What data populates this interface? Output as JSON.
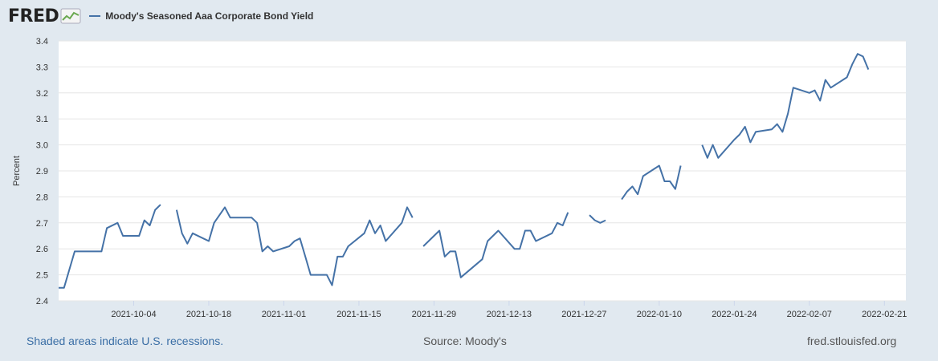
{
  "header": {
    "logo_text": "FRED",
    "logo_icon": "trend-chart-icon",
    "series_label": "Moody's Seasoned Aaa Corporate Bond Yield"
  },
  "footer": {
    "recessions_note": "Shaded areas indicate U.S. recessions.",
    "source": "Source: Moody's",
    "site": "fred.stlouisfed.org"
  },
  "colors": {
    "background": "#e1e9f0",
    "plot_background": "#ffffff",
    "series": "#4572a7",
    "grid": "#e6e6e6"
  },
  "chart_data": {
    "type": "line",
    "title": "",
    "xlabel": "",
    "ylabel": "Percent",
    "ylim": [
      2.4,
      3.4
    ],
    "yticks": [
      "2.4",
      "2.5",
      "2.6",
      "2.7",
      "2.8",
      "2.9",
      "3.0",
      "3.1",
      "3.2",
      "3.3",
      "3.4"
    ],
    "xlim": [
      "2021-09-20",
      "2022-02-25"
    ],
    "xticks": [
      "2021-10-04",
      "2021-10-18",
      "2021-11-01",
      "2021-11-15",
      "2021-11-29",
      "2021-12-13",
      "2021-12-27",
      "2022-01-10",
      "2022-01-24",
      "2022-02-07",
      "2022-02-21"
    ],
    "grid": "horizontal",
    "legend": "top-left",
    "series": [
      {
        "name": "Moody's Seasoned Aaa Corporate Bond Yield",
        "segments": [
          [
            [
              "2021-09-20",
              2.45
            ],
            [
              "2021-09-21",
              2.45
            ],
            [
              "2021-09-23",
              2.59
            ],
            [
              "2021-09-24",
              2.59
            ],
            [
              "2021-09-27",
              2.59
            ],
            [
              "2021-09-28",
              2.59
            ],
            [
              "2021-09-29",
              2.68
            ],
            [
              "2021-10-01",
              2.7
            ],
            [
              "2021-10-02",
              2.65
            ],
            [
              "2021-10-05",
              2.65
            ],
            [
              "2021-10-06",
              2.71
            ],
            [
              "2021-10-07",
              2.69
            ],
            [
              "2021-10-08",
              2.75
            ],
            [
              "2021-10-09",
              2.77
            ]
          ],
          [
            [
              "2021-10-12",
              2.75
            ],
            [
              "2021-10-13",
              2.66
            ],
            [
              "2021-10-14",
              2.62
            ],
            [
              "2021-10-15",
              2.66
            ],
            [
              "2021-10-18",
              2.63
            ],
            [
              "2021-10-19",
              2.7
            ],
            [
              "2021-10-21",
              2.76
            ],
            [
              "2021-10-22",
              2.72
            ],
            [
              "2021-10-26",
              2.72
            ],
            [
              "2021-10-27",
              2.7
            ],
            [
              "2021-10-28",
              2.59
            ],
            [
              "2021-10-29",
              2.61
            ],
            [
              "2021-10-30",
              2.59
            ],
            [
              "2021-11-02",
              2.61
            ],
            [
              "2021-11-03",
              2.63
            ],
            [
              "2021-11-04",
              2.64
            ],
            [
              "2021-11-05",
              2.57
            ],
            [
              "2021-11-06",
              2.5
            ],
            [
              "2021-11-09",
              2.5
            ],
            [
              "2021-11-10",
              2.46
            ],
            [
              "2021-11-11",
              2.57
            ],
            [
              "2021-11-12",
              2.57
            ],
            [
              "2021-11-13",
              2.61
            ],
            [
              "2021-11-16",
              2.66
            ],
            [
              "2021-11-17",
              2.71
            ],
            [
              "2021-11-18",
              2.66
            ],
            [
              "2021-11-19",
              2.69
            ],
            [
              "2021-11-20",
              2.63
            ],
            [
              "2021-11-23",
              2.7
            ],
            [
              "2021-11-24",
              2.76
            ],
            [
              "2021-11-25",
              2.72
            ]
          ],
          [
            [
              "2021-11-27",
              2.61
            ],
            [
              "2021-11-30",
              2.67
            ],
            [
              "2021-12-01",
              2.57
            ],
            [
              "2021-12-02",
              2.59
            ],
            [
              "2021-12-03",
              2.59
            ],
            [
              "2021-12-04",
              2.49
            ],
            [
              "2021-12-08",
              2.56
            ],
            [
              "2021-12-09",
              2.63
            ],
            [
              "2021-12-11",
              2.67
            ],
            [
              "2021-12-14",
              2.6
            ],
            [
              "2021-12-15",
              2.6
            ],
            [
              "2021-12-16",
              2.67
            ],
            [
              "2021-12-17",
              2.67
            ],
            [
              "2021-12-18",
              2.63
            ],
            [
              "2021-12-21",
              2.66
            ],
            [
              "2021-12-22",
              2.7
            ],
            [
              "2021-12-23",
              2.69
            ],
            [
              "2021-12-24",
              2.74
            ]
          ],
          [
            [
              "2021-12-28",
              2.73
            ],
            [
              "2021-12-29",
              2.71
            ],
            [
              "2021-12-30",
              2.7
            ],
            [
              "2021-12-31",
              2.71
            ]
          ],
          [
            [
              "2022-01-03",
              2.79
            ],
            [
              "2022-01-04",
              2.82
            ],
            [
              "2022-01-05",
              2.84
            ],
            [
              "2022-01-06",
              2.81
            ],
            [
              "2022-01-07",
              2.88
            ],
            [
              "2022-01-10",
              2.92
            ],
            [
              "2022-01-11",
              2.86
            ],
            [
              "2022-01-12",
              2.86
            ],
            [
              "2022-01-13",
              2.83
            ],
            [
              "2022-01-14",
              2.92
            ]
          ],
          [
            [
              "2022-01-18",
              3.0
            ],
            [
              "2022-01-19",
              2.95
            ],
            [
              "2022-01-20",
              3.0
            ],
            [
              "2022-01-21",
              2.95
            ],
            [
              "2022-01-24",
              3.02
            ],
            [
              "2022-01-25",
              3.04
            ],
            [
              "2022-01-26",
              3.07
            ],
            [
              "2022-01-27",
              3.01
            ],
            [
              "2022-01-28",
              3.05
            ],
            [
              "2022-01-31",
              3.06
            ],
            [
              "2022-02-01",
              3.08
            ],
            [
              "2022-02-02",
              3.05
            ],
            [
              "2022-02-03",
              3.12
            ],
            [
              "2022-02-04",
              3.22
            ],
            [
              "2022-02-07",
              3.2
            ],
            [
              "2022-02-08",
              3.21
            ],
            [
              "2022-02-09",
              3.17
            ],
            [
              "2022-02-10",
              3.25
            ],
            [
              "2022-02-11",
              3.22
            ],
            [
              "2022-02-14",
              3.26
            ],
            [
              "2022-02-15",
              3.31
            ],
            [
              "2022-02-16",
              3.35
            ],
            [
              "2022-02-17",
              3.34
            ],
            [
              "2022-02-18",
              3.29
            ]
          ]
        ]
      }
    ]
  }
}
